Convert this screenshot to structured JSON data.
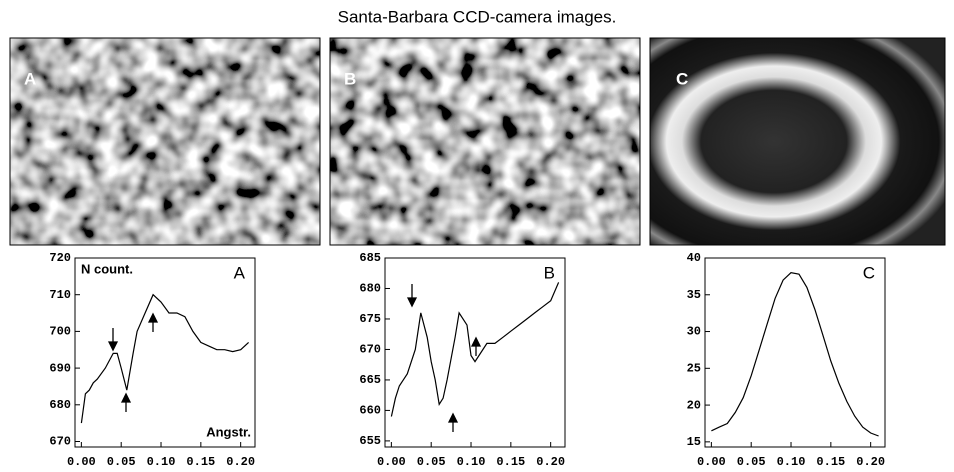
{
  "title": "Santa-Barbara CCD-camera images.",
  "image_labels": [
    "A",
    "B",
    "C"
  ],
  "chart_data": [
    {
      "type": "line",
      "title": "A",
      "y_label": "N count.",
      "x_label": "Angstr.",
      "x": [
        0,
        0.005,
        0.01,
        0.015,
        0.02,
        0.03,
        0.04,
        0.045,
        0.05,
        0.057,
        0.065,
        0.07,
        0.08,
        0.09,
        0.1,
        0.11,
        0.12,
        0.13,
        0.14,
        0.15,
        0.16,
        0.17,
        0.18,
        0.19,
        0.2,
        0.21
      ],
      "values": [
        675,
        683,
        684,
        686,
        687,
        690,
        694,
        694,
        690,
        684,
        694,
        700,
        705,
        710,
        708,
        705,
        705,
        704,
        700,
        697,
        696,
        695,
        695,
        694.5,
        695,
        697
      ],
      "color": "#000000",
      "xlim": [
        -0.008,
        0.218
      ],
      "ylim": [
        668.5,
        720
      ],
      "xticks": [
        {
          "value": 0,
          "label": "0.00"
        },
        0.05,
        {
          "value": 0.1,
          "label": "0.10"
        },
        0.15,
        {
          "value": 0.2,
          "label": "0.20"
        }
      ],
      "yticks": [
        670,
        680,
        690,
        700,
        710,
        720
      ]
    },
    {
      "type": "line",
      "title": "B",
      "x": [
        0,
        0.005,
        0.01,
        0.015,
        0.02,
        0.03,
        0.037,
        0.045,
        0.05,
        0.055,
        0.06,
        0.065,
        0.07,
        0.08,
        0.085,
        0.095,
        0.1,
        0.105,
        0.11,
        0.12,
        0.13,
        0.14,
        0.15,
        0.16,
        0.17,
        0.18,
        0.19,
        0.2,
        0.21
      ],
      "values": [
        659,
        662,
        664,
        665,
        666,
        670,
        676,
        672,
        668,
        665,
        661,
        662,
        665,
        672,
        676,
        674,
        669,
        668,
        669,
        671,
        671,
        672,
        673,
        674,
        675,
        676,
        677,
        678,
        681
      ],
      "color": "#000000",
      "xlim": [
        -0.008,
        0.218
      ],
      "ylim": [
        654,
        685
      ],
      "xticks": [
        {
          "value": 0,
          "label": "0.00"
        },
        0.05,
        {
          "value": 0.1,
          "label": "0.10"
        },
        0.15,
        {
          "value": 0.2,
          "label": "0.20"
        }
      ],
      "yticks": [
        655,
        660,
        665,
        670,
        675,
        680,
        685
      ]
    },
    {
      "type": "line",
      "title": "C",
      "x": [
        0,
        0.01,
        0.02,
        0.03,
        0.04,
        0.05,
        0.06,
        0.07,
        0.08,
        0.09,
        0.1,
        0.11,
        0.12,
        0.13,
        0.14,
        0.15,
        0.16,
        0.17,
        0.18,
        0.19,
        0.2,
        0.21
      ],
      "values": [
        16.5,
        17,
        17.5,
        19,
        21,
        24,
        27.5,
        31,
        34.5,
        37,
        38,
        37.8,
        36,
        33,
        29.5,
        26,
        23,
        20.5,
        18.5,
        17,
        16.2,
        15.8
      ],
      "color": "#000000",
      "xlim": [
        -0.008,
        0.218
      ],
      "ylim": [
        14.3,
        40
      ],
      "xticks": [
        {
          "value": 0,
          "label": "0.00"
        },
        0.05,
        {
          "value": 0.1,
          "label": "0.10"
        },
        0.15,
        {
          "value": 0.2,
          "label": "0.20"
        }
      ],
      "yticks": [
        15,
        20,
        25,
        30,
        35,
        40
      ]
    }
  ]
}
